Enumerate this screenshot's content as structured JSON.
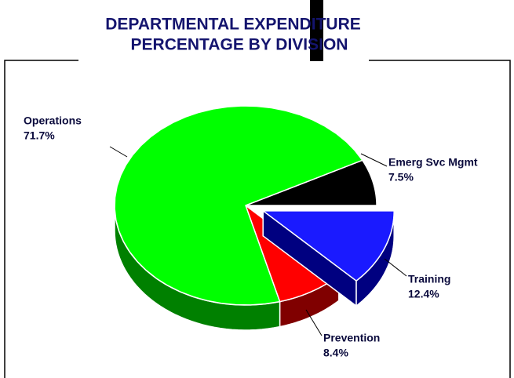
{
  "chart_data": {
    "type": "pie3d",
    "title": [
      "DEPARTMENTAL EXPENDITURE",
      "PERCENTAGE BY DIVISION"
    ],
    "categories": [
      "Emerg Svc Mgmt",
      "Training",
      "Prevention",
      "Operations"
    ],
    "values": [
      7.5,
      12.4,
      8.4,
      71.7
    ],
    "value_labels": [
      "7.5%",
      "12.4%",
      "8.4%",
      "71.7%"
    ],
    "colors": [
      "#000000",
      "#1a1aff",
      "#ff0000",
      "#00ff00"
    ],
    "side_colors": [
      "#000000",
      "#000080",
      "#800000",
      "#008000"
    ],
    "exploded": [
      "Training"
    ]
  }
}
